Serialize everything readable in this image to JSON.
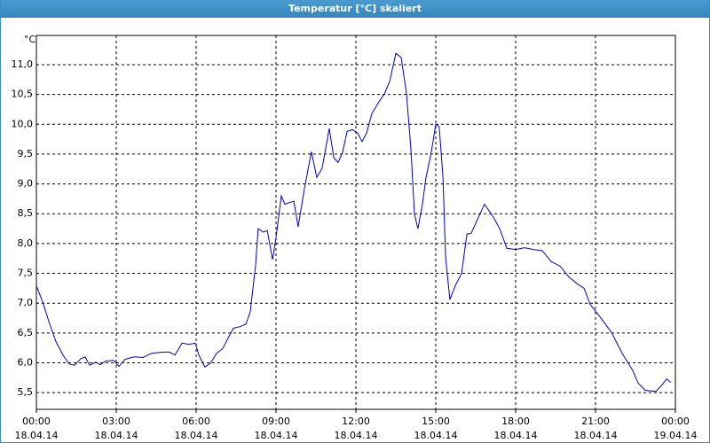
{
  "chart_data": {
    "type": "line",
    "title": "Temperatur [°C] skaliert",
    "y_label": "°C",
    "x": [
      0,
      0.23,
      0.5,
      0.73,
      1.0,
      1.23,
      1.43,
      1.67,
      1.83,
      2.0,
      2.23,
      2.4,
      2.6,
      2.9,
      3.1,
      3.33,
      3.67,
      4.0,
      4.33,
      4.77,
      5.0,
      5.2,
      5.47,
      5.73,
      5.97,
      6.1,
      6.33,
      6.53,
      6.77,
      7.0,
      7.17,
      7.4,
      7.67,
      7.87,
      8.03,
      8.23,
      8.33,
      8.53,
      8.67,
      8.87,
      9.0,
      9.2,
      9.33,
      9.53,
      9.67,
      9.83,
      10.07,
      10.33,
      10.53,
      10.73,
      11.0,
      11.17,
      11.33,
      11.5,
      11.67,
      11.87,
      12.07,
      12.23,
      12.4,
      12.6,
      12.87,
      13.07,
      13.27,
      13.5,
      13.7,
      13.9,
      14.07,
      14.2,
      14.33,
      14.5,
      14.63,
      14.83,
      15.0,
      15.13,
      15.27,
      15.37,
      15.53,
      15.73,
      15.97,
      16.17,
      16.33,
      16.53,
      16.83,
      17.0,
      17.17,
      17.4,
      17.67,
      18.0,
      18.33,
      18.67,
      19.0,
      19.33,
      19.67,
      20.0,
      20.33,
      20.57,
      20.8,
      21.17,
      21.6,
      22.0,
      22.4,
      22.6,
      22.87,
      23.27,
      23.5,
      23.67,
      23.83
    ],
    "series": [
      {
        "name": "Temperatur",
        "color": "#0000cc",
        "values": [
          7.29,
          7.03,
          6.65,
          6.36,
          6.13,
          5.98,
          5.96,
          6.07,
          6.1,
          5.96,
          6.01,
          5.97,
          6.03,
          6.04,
          5.94,
          6.06,
          6.1,
          6.09,
          6.16,
          6.18,
          6.18,
          6.13,
          6.33,
          6.31,
          6.33,
          6.13,
          5.93,
          5.99,
          6.16,
          6.24,
          6.39,
          6.58,
          6.61,
          6.65,
          6.85,
          7.62,
          8.25,
          8.19,
          8.22,
          7.73,
          8.1,
          8.8,
          8.66,
          8.69,
          8.71,
          8.28,
          8.93,
          9.54,
          9.11,
          9.26,
          9.93,
          9.44,
          9.36,
          9.53,
          9.88,
          9.91,
          9.85,
          9.71,
          9.85,
          10.18,
          10.38,
          10.51,
          10.72,
          11.19,
          11.12,
          10.52,
          9.56,
          8.49,
          8.25,
          8.66,
          9.1,
          9.53,
          10.0,
          9.96,
          9.11,
          7.77,
          7.06,
          7.29,
          7.5,
          8.16,
          8.17,
          8.37,
          8.66,
          8.55,
          8.44,
          8.25,
          7.92,
          7.9,
          7.93,
          7.9,
          7.88,
          7.7,
          7.62,
          7.44,
          7.32,
          7.25,
          6.98,
          6.77,
          6.51,
          6.16,
          5.87,
          5.66,
          5.54,
          5.52,
          5.63,
          5.73,
          5.67
        ]
      }
    ],
    "xlim": [
      0,
      24
    ],
    "xticks": [
      {
        "value": 0,
        "label": "00:00\n18.04.14"
      },
      {
        "value": 3,
        "label": "03:00\n18.04.14"
      },
      {
        "value": 6,
        "label": "06:00\n18.04.14"
      },
      {
        "value": 9,
        "label": "09:00\n18.04.14"
      },
      {
        "value": 12,
        "label": "12:00\n18.04.14"
      },
      {
        "value": 15,
        "label": "15:00\n18.04.14"
      },
      {
        "value": 18,
        "label": "18:00\n18.04.14"
      },
      {
        "value": 21,
        "label": "21:00\n18.04.14"
      },
      {
        "value": 24,
        "label": "00:00\n19.04.14"
      }
    ],
    "ylim": [
      5.22,
      11.49
    ],
    "yticks": [
      {
        "value": 5.5,
        "label": "5,5"
      },
      {
        "value": 6,
        "label": "6,0"
      },
      {
        "value": 6.5,
        "label": "6,5"
      },
      {
        "value": 7,
        "label": "7,0"
      },
      {
        "value": 7.5,
        "label": "7,5"
      },
      {
        "value": 8,
        "label": "8,0"
      },
      {
        "value": 8.5,
        "label": "8,5"
      },
      {
        "value": 9,
        "label": "9,0"
      },
      {
        "value": 9.5,
        "label": "9,5"
      },
      {
        "value": 10,
        "label": "10,0"
      },
      {
        "value": 10.5,
        "label": "10,5"
      },
      {
        "value": 11,
        "label": "11,0"
      }
    ],
    "grid": true
  }
}
